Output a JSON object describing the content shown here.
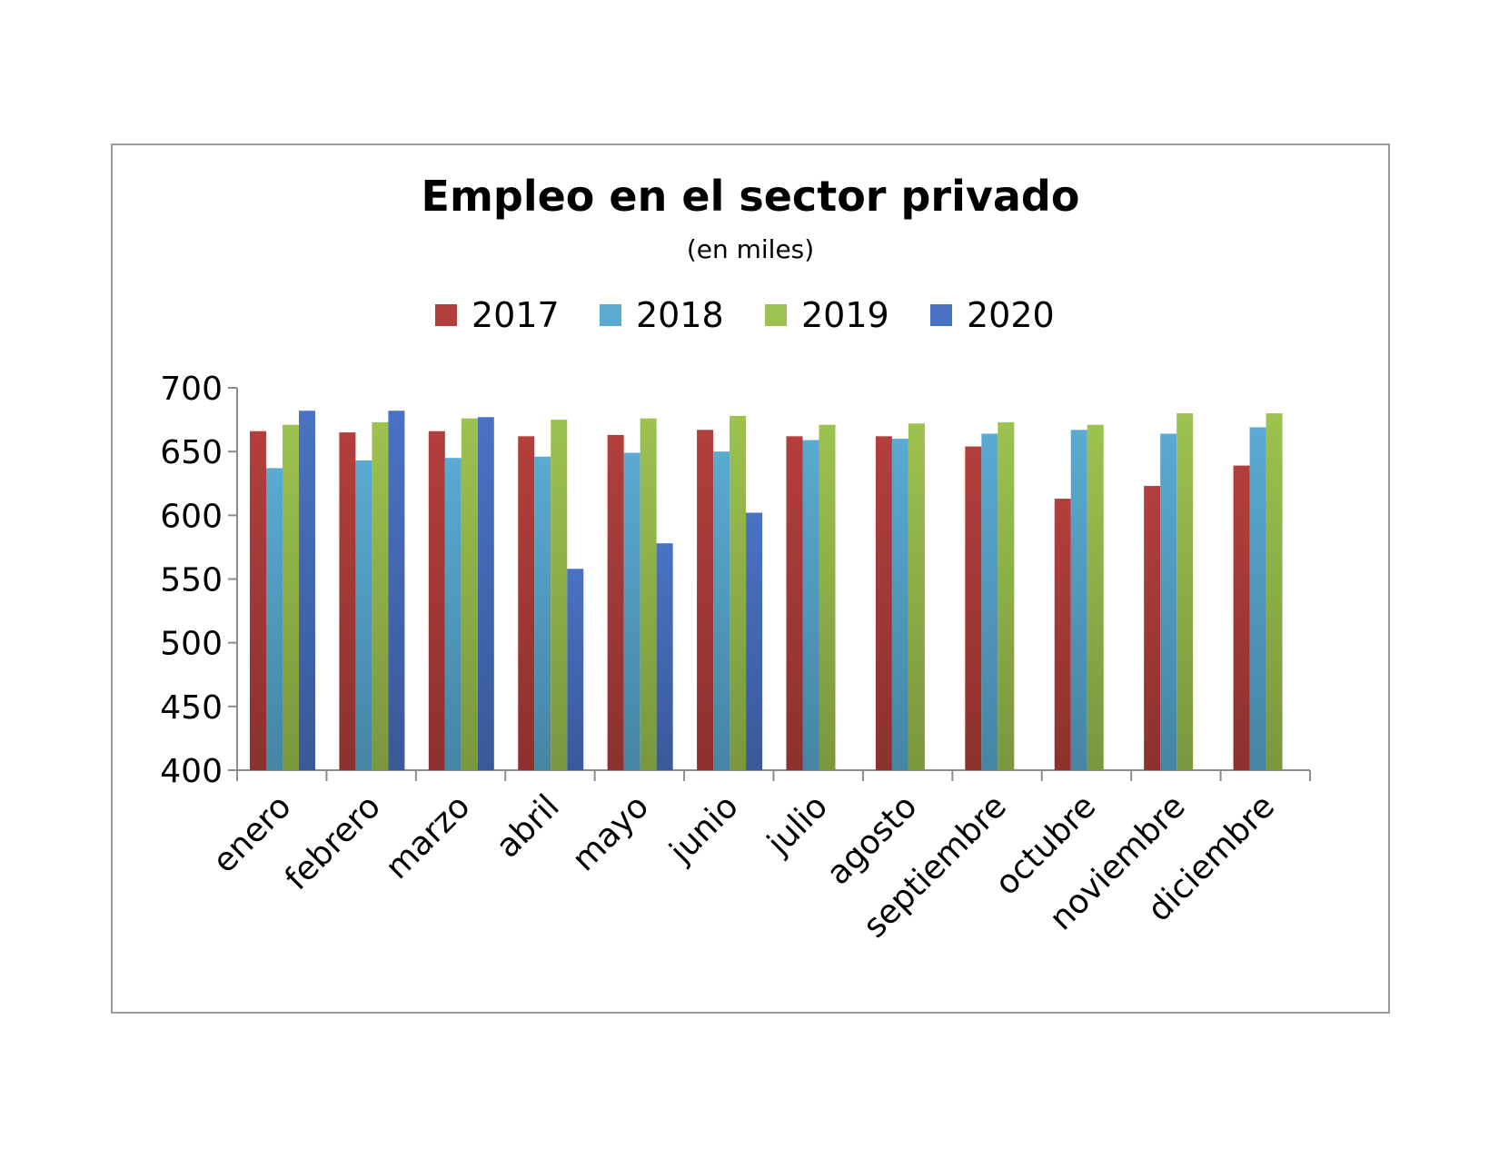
{
  "chart_data": {
    "type": "bar",
    "title": "Empleo en el sector privado",
    "subtitle": "(en miles)",
    "categories": [
      "enero",
      "febrero",
      "marzo",
      "abril",
      "mayo",
      "junio",
      "julio",
      "agosto",
      "septiembre",
      "octubre",
      "noviembre",
      "diciembre"
    ],
    "series": [
      {
        "name": "2017",
        "color": "#b33f3c",
        "values": [
          666,
          665,
          666,
          662,
          663,
          667,
          662,
          662,
          654,
          613,
          623,
          639
        ]
      },
      {
        "name": "2018",
        "color": "#5aaad2",
        "values": [
          637,
          643,
          645,
          646,
          649,
          650,
          659,
          660,
          664,
          667,
          664,
          669
        ]
      },
      {
        "name": "2019",
        "color": "#9cc24f",
        "values": [
          671,
          673,
          676,
          675,
          676,
          678,
          671,
          672,
          673,
          671,
          680,
          680
        ]
      },
      {
        "name": "2020",
        "color": "#4a72c4",
        "values": [
          682,
          682,
          677,
          558,
          578,
          602,
          null,
          null,
          null,
          null,
          null,
          null
        ]
      }
    ],
    "ylim": [
      400,
      700
    ],
    "yticks": [
      "400",
      "450",
      "500",
      "550",
      "600",
      "650",
      "700"
    ],
    "legend_position": "top",
    "grid": false
  }
}
